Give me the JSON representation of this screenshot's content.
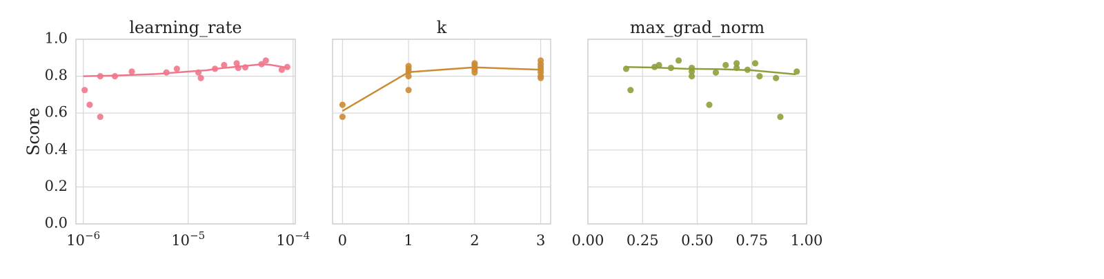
{
  "ylabel": "Score",
  "colors": {
    "learning_rate": "#f0778b",
    "k": "#cc8c34",
    "max_grad_norm": "#8f9e3c",
    "grid": "#d7d7d7",
    "frame": "#cfcfcf"
  },
  "chart_data": [
    {
      "type": "scatter",
      "title": "learning_rate",
      "xscale": "log",
      "xlim": [
        8.5e-07,
        0.000105
      ],
      "ylim": [
        0.0,
        1.0
      ],
      "xticks": [
        1e-06,
        1e-05,
        0.0001
      ],
      "xtick_labels": [
        {
          "base": "10",
          "exp": "−6"
        },
        {
          "base": "10",
          "exp": "−5"
        },
        {
          "base": "10",
          "exp": "−4"
        }
      ],
      "yticks": [
        0.0,
        0.2,
        0.4,
        0.6,
        0.8,
        1.0
      ],
      "ytick_labels": [
        "0.0",
        "0.2",
        "0.4",
        "0.6",
        "0.8",
        "1.0"
      ],
      "points": [
        {
          "x": 1.03e-06,
          "y": 0.725
        },
        {
          "x": 1.15e-06,
          "y": 0.645
        },
        {
          "x": 1.45e-06,
          "y": 0.58
        },
        {
          "x": 1.45e-06,
          "y": 0.8
        },
        {
          "x": 2e-06,
          "y": 0.8
        },
        {
          "x": 2.9e-06,
          "y": 0.825
        },
        {
          "x": 6.2e-06,
          "y": 0.82
        },
        {
          "x": 7.8e-06,
          "y": 0.84
        },
        {
          "x": 1.25e-05,
          "y": 0.82
        },
        {
          "x": 1.32e-05,
          "y": 0.79
        },
        {
          "x": 1.8e-05,
          "y": 0.84
        },
        {
          "x": 2.2e-05,
          "y": 0.86
        },
        {
          "x": 2.9e-05,
          "y": 0.87
        },
        {
          "x": 3e-05,
          "y": 0.845
        },
        {
          "x": 3.5e-05,
          "y": 0.848
        },
        {
          "x": 5e-05,
          "y": 0.865
        },
        {
          "x": 5.5e-05,
          "y": 0.885
        },
        {
          "x": 7.8e-05,
          "y": 0.835
        },
        {
          "x": 8.8e-05,
          "y": 0.85
        }
      ],
      "line": [
        {
          "x": 1e-06,
          "y": 0.8
        },
        {
          "x": 2e-06,
          "y": 0.803
        },
        {
          "x": 5e-06,
          "y": 0.812
        },
        {
          "x": 1e-05,
          "y": 0.825
        },
        {
          "x": 1.5e-05,
          "y": 0.832
        },
        {
          "x": 2e-05,
          "y": 0.842
        },
        {
          "x": 3e-05,
          "y": 0.852
        },
        {
          "x": 5e-05,
          "y": 0.865
        },
        {
          "x": 6e-05,
          "y": 0.862
        },
        {
          "x": 9e-05,
          "y": 0.845
        }
      ]
    },
    {
      "type": "scatter",
      "title": "k",
      "xscale": "linear",
      "xlim": [
        -0.15,
        3.15
      ],
      "ylim": [
        0.0,
        1.0
      ],
      "xticks": [
        0,
        1,
        2,
        3
      ],
      "xtick_labels": [
        "0",
        "1",
        "2",
        "3"
      ],
      "yticks": [
        0.0,
        0.2,
        0.4,
        0.6,
        0.8,
        1.0
      ],
      "points": [
        {
          "x": 0,
          "y": 0.645
        },
        {
          "x": 0,
          "y": 0.58
        },
        {
          "x": 1,
          "y": 0.855
        },
        {
          "x": 1,
          "y": 0.84
        },
        {
          "x": 1,
          "y": 0.825
        },
        {
          "x": 1,
          "y": 0.8
        },
        {
          "x": 1,
          "y": 0.725
        },
        {
          "x": 2,
          "y": 0.87
        },
        {
          "x": 2,
          "y": 0.86
        },
        {
          "x": 2,
          "y": 0.845
        },
        {
          "x": 2,
          "y": 0.835
        },
        {
          "x": 2,
          "y": 0.82
        },
        {
          "x": 3,
          "y": 0.885
        },
        {
          "x": 3,
          "y": 0.865
        },
        {
          "x": 3,
          "y": 0.85
        },
        {
          "x": 3,
          "y": 0.835
        },
        {
          "x": 3,
          "y": 0.82
        },
        {
          "x": 3,
          "y": 0.8
        },
        {
          "x": 3,
          "y": 0.79
        }
      ],
      "line": [
        {
          "x": 0,
          "y": 0.612
        },
        {
          "x": 1,
          "y": 0.822
        },
        {
          "x": 2,
          "y": 0.848
        },
        {
          "x": 3,
          "y": 0.835
        }
      ]
    },
    {
      "type": "scatter",
      "title": "max_grad_norm",
      "xscale": "linear",
      "xlim": [
        0.0,
        1.0
      ],
      "ylim": [
        0.0,
        1.0
      ],
      "xticks": [
        0.0,
        0.25,
        0.5,
        0.75,
        1.0
      ],
      "xtick_labels": [
        "0.00",
        "0.25",
        "0.50",
        "0.75",
        "1.00"
      ],
      "yticks": [
        0.0,
        0.2,
        0.4,
        0.6,
        0.8,
        1.0
      ],
      "points": [
        {
          "x": 0.175,
          "y": 0.84
        },
        {
          "x": 0.195,
          "y": 0.725
        },
        {
          "x": 0.305,
          "y": 0.85
        },
        {
          "x": 0.325,
          "y": 0.86
        },
        {
          "x": 0.38,
          "y": 0.845
        },
        {
          "x": 0.415,
          "y": 0.885
        },
        {
          "x": 0.475,
          "y": 0.845
        },
        {
          "x": 0.475,
          "y": 0.825
        },
        {
          "x": 0.475,
          "y": 0.8
        },
        {
          "x": 0.555,
          "y": 0.645
        },
        {
          "x": 0.585,
          "y": 0.82
        },
        {
          "x": 0.63,
          "y": 0.86
        },
        {
          "x": 0.68,
          "y": 0.87
        },
        {
          "x": 0.68,
          "y": 0.845
        },
        {
          "x": 0.73,
          "y": 0.835
        },
        {
          "x": 0.765,
          "y": 0.87
        },
        {
          "x": 0.785,
          "y": 0.8
        },
        {
          "x": 0.86,
          "y": 0.79
        },
        {
          "x": 0.88,
          "y": 0.58
        },
        {
          "x": 0.955,
          "y": 0.825
        }
      ],
      "line": [
        {
          "x": 0.17,
          "y": 0.85
        },
        {
          "x": 0.3,
          "y": 0.847
        },
        {
          "x": 0.45,
          "y": 0.84
        },
        {
          "x": 0.6,
          "y": 0.838
        },
        {
          "x": 0.75,
          "y": 0.832
        },
        {
          "x": 0.95,
          "y": 0.81
        }
      ]
    }
  ]
}
